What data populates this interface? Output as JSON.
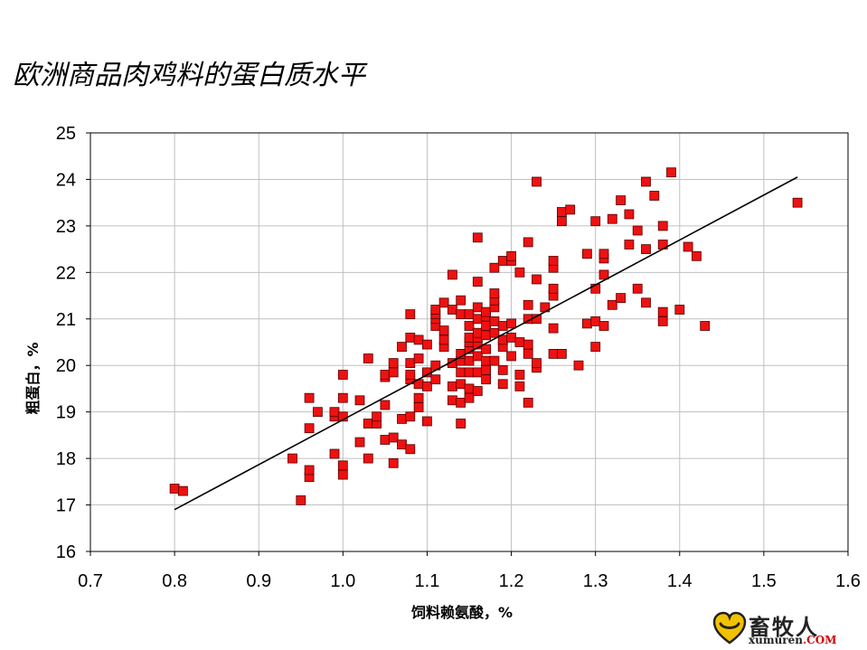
{
  "title": "欧洲商品肉鸡料的蛋白质水平",
  "logo": {
    "chinese": "畜牧人",
    "latin": "xumuren",
    "com": ".COM"
  },
  "colors": {
    "marker": "#ee1111",
    "marker_edge": "#550000",
    "trend": "#000000",
    "grid": "#c0c0c0"
  },
  "chart_data": {
    "type": "scatter",
    "title": "欧洲商品肉鸡料的蛋白质水平",
    "xlabel": "饲料赖氨酸，%",
    "ylabel": "粗蛋白，%",
    "xlim": [
      0.7,
      1.6
    ],
    "ylim": [
      16,
      25
    ],
    "xticks": [
      "0.7",
      "0.8",
      "0.9",
      "1.0",
      "1.1",
      "1.2",
      "1.3",
      "1.4",
      "1.5",
      "1.6"
    ],
    "yticks": [
      "16",
      "17",
      "18",
      "19",
      "20",
      "21",
      "22",
      "23",
      "24",
      "25"
    ],
    "grid": true,
    "trendline": {
      "x": [
        0.8,
        1.54
      ],
      "y": [
        16.9,
        24.05
      ]
    },
    "x": [
      0.8,
      0.81,
      0.94,
      0.95,
      0.96,
      0.96,
      0.96,
      0.96,
      0.97,
      0.99,
      0.99,
      0.99,
      1.0,
      1.0,
      1.0,
      1.0,
      1.0,
      1.02,
      1.02,
      1.03,
      1.03,
      1.03,
      1.04,
      1.04,
      1.05,
      1.05,
      1.05,
      1.05,
      1.06,
      1.06,
      1.06,
      1.06,
      1.07,
      1.07,
      1.07,
      1.08,
      1.08,
      1.08,
      1.08,
      1.08,
      1.08,
      1.08,
      1.09,
      1.09,
      1.09,
      1.09,
      1.09,
      1.1,
      1.1,
      1.1,
      1.1,
      1.11,
      1.11,
      1.11,
      1.11,
      1.11,
      1.11,
      1.12,
      1.12,
      1.12,
      1.12,
      1.13,
      1.13,
      1.13,
      1.13,
      1.13,
      1.14,
      1.14,
      1.14,
      1.14,
      1.14,
      1.14,
      1.14,
      1.14,
      1.15,
      1.15,
      1.15,
      1.15,
      1.15,
      1.15,
      1.15,
      1.15,
      1.15,
      1.16,
      1.16,
      1.16,
      1.16,
      1.16,
      1.16,
      1.16,
      1.16,
      1.16,
      1.16,
      1.17,
      1.17,
      1.17,
      1.17,
      1.17,
      1.17,
      1.17,
      1.17,
      1.18,
      1.18,
      1.18,
      1.18,
      1.18,
      1.18,
      1.18,
      1.19,
      1.19,
      1.19,
      1.19,
      1.19,
      1.19,
      1.2,
      1.2,
      1.2,
      1.2,
      1.2,
      1.21,
      1.21,
      1.21,
      1.21,
      1.22,
      1.22,
      1.22,
      1.22,
      1.22,
      1.22,
      1.23,
      1.23,
      1.23,
      1.23,
      1.23,
      1.24,
      1.25,
      1.25,
      1.25,
      1.25,
      1.25,
      1.25,
      1.26,
      1.26,
      1.26,
      1.27,
      1.28,
      1.29,
      1.29,
      1.3,
      1.3,
      1.3,
      1.3,
      1.31,
      1.31,
      1.31,
      1.31,
      1.32,
      1.32,
      1.33,
      1.33,
      1.34,
      1.34,
      1.35,
      1.35,
      1.36,
      1.36,
      1.36,
      1.37,
      1.38,
      1.38,
      1.38,
      1.38,
      1.39,
      1.4,
      1.41,
      1.42,
      1.43,
      1.54
    ],
    "y": [
      17.35,
      17.3,
      18.0,
      17.1,
      17.6,
      17.75,
      18.65,
      19.3,
      19.0,
      18.1,
      18.9,
      19.0,
      17.65,
      17.85,
      18.9,
      19.3,
      19.8,
      18.35,
      19.25,
      18.0,
      18.75,
      20.15,
      18.75,
      18.9,
      18.4,
      19.15,
      19.75,
      19.8,
      17.9,
      18.45,
      19.85,
      20.05,
      18.3,
      18.85,
      20.4,
      18.2,
      18.9,
      19.7,
      20.05,
      20.6,
      21.1,
      19.8,
      19.1,
      19.3,
      19.6,
      20.15,
      20.55,
      18.8,
      19.55,
      19.85,
      20.45,
      19.7,
      20.0,
      20.85,
      21.0,
      21.1,
      21.2,
      20.4,
      20.55,
      20.75,
      21.35,
      19.25,
      19.55,
      20.05,
      21.2,
      21.95,
      18.75,
      19.2,
      19.6,
      19.85,
      20.1,
      20.25,
      21.1,
      21.4,
      19.3,
      19.5,
      19.85,
      20.1,
      20.35,
      20.5,
      20.6,
      20.85,
      21.1,
      19.45,
      19.85,
      20.2,
      20.45,
      20.6,
      20.7,
      21.0,
      21.25,
      21.8,
      22.75,
      19.7,
      19.9,
      20.1,
      20.35,
      20.65,
      20.85,
      21.05,
      21.15,
      20.1,
      20.7,
      20.95,
      21.25,
      21.4,
      21.55,
      22.1,
      19.6,
      19.9,
      20.4,
      20.55,
      20.85,
      22.25,
      20.2,
      20.6,
      20.9,
      22.25,
      22.35,
      19.55,
      19.8,
      20.5,
      22.0,
      19.2,
      20.25,
      20.45,
      21.0,
      21.3,
      22.65,
      19.95,
      20.05,
      21.0,
      21.85,
      23.95,
      21.25,
      20.25,
      20.8,
      21.5,
      21.65,
      22.1,
      22.25,
      20.25,
      23.1,
      23.3,
      23.35,
      20.0,
      20.9,
      22.4,
      20.4,
      20.95,
      21.65,
      23.1,
      20.85,
      21.95,
      22.3,
      22.4,
      21.3,
      23.15,
      21.45,
      23.55,
      22.6,
      23.25,
      21.65,
      22.9,
      21.35,
      22.5,
      23.95,
      23.65,
      20.95,
      21.15,
      22.6,
      23.0,
      24.15,
      21.2,
      22.55,
      22.35,
      20.85,
      23.5
    ]
  }
}
